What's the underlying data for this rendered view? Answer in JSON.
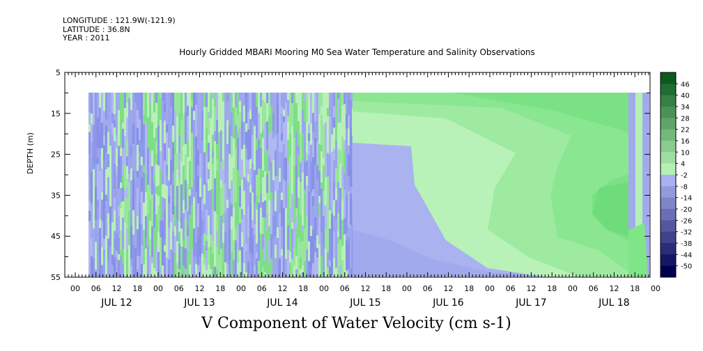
{
  "header": {
    "longitude": "LONGITUDE : 121.9W(-121.9)",
    "latitude": "LATITUDE : 36.8N",
    "year": "YEAR : 2011"
  },
  "chart_data": {
    "type": "heatmap",
    "title": "Hourly Gridded MBARI Mooring M0 Sea Water Temperature and Salinity Observations",
    "xlabel": "V Component of Water Velocity (cm s-1)",
    "ylabel": "DEPTH (m)",
    "y_ticks": [
      5,
      15,
      25,
      35,
      45,
      55
    ],
    "ylim": [
      55,
      5
    ],
    "x_hour_labels": [
      "00",
      "06",
      "12",
      "18",
      "00",
      "06",
      "12",
      "18",
      "00",
      "06",
      "12",
      "18",
      "00",
      "06",
      "12",
      "18",
      "00",
      "06",
      "12",
      "18",
      "00",
      "06",
      "12",
      "18",
      "00",
      "06",
      "12",
      "18",
      "00"
    ],
    "x_day_labels": [
      "JUL 12",
      "JUL 13",
      "JUL 14",
      "JUL 15",
      "JUL 16",
      "JUL 17",
      "JUL 18"
    ],
    "colorbar_labels": [
      "46",
      "40",
      "34",
      "28",
      "22",
      "16",
      "10",
      "4",
      "-2",
      "-8",
      "-14",
      "-20",
      "-26",
      "-32",
      "-38",
      "-44",
      "-50"
    ],
    "colorbar_range": [
      -50,
      50
    ],
    "colors": {
      "pos_strong": "#0a5a1e",
      "pos_light": "#b4f0b4",
      "neg_light": "#aab0f0",
      "neg_strong": "#000050"
    }
  }
}
